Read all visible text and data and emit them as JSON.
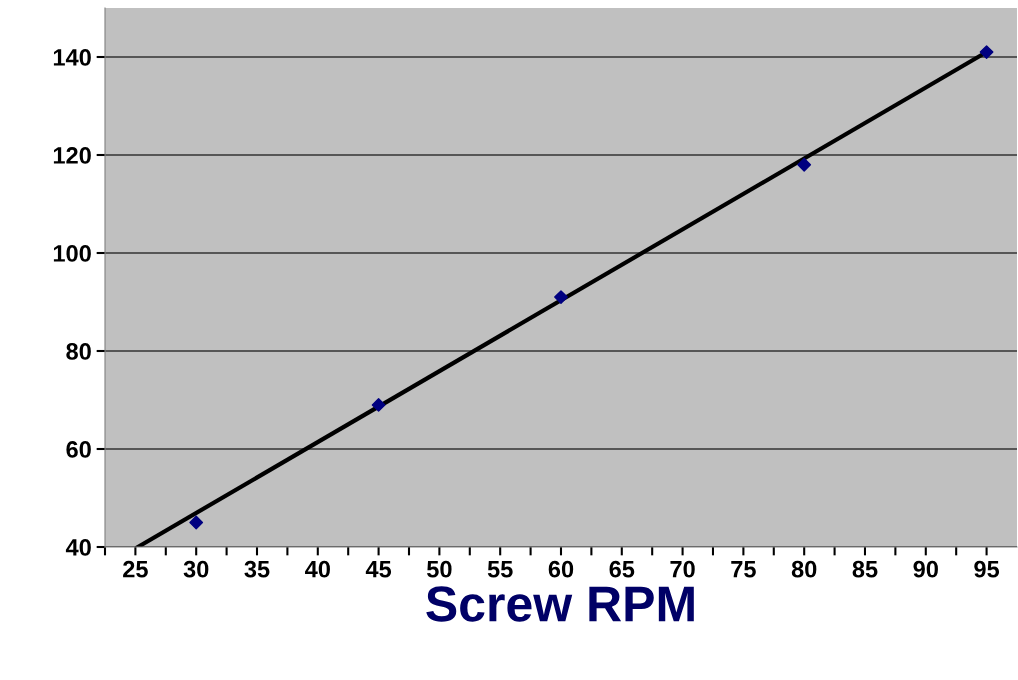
{
  "chart_data": {
    "type": "scatter",
    "xlabel": "Screw RPM",
    "x": [
      30,
      45,
      60,
      80,
      95
    ],
    "series": [
      {
        "color": "#000080",
        "marker": "diamond",
        "values": [
          45,
          69,
          91,
          118,
          141
        ]
      },
      {
        "type": "line",
        "color": "#000000",
        "marker": "none",
        "line_style": "solid",
        "x": [
          25.2,
          95
        ],
        "values": [
          40,
          141
        ]
      }
    ],
    "xlim": [
      22.5,
      97.5
    ],
    "xticks": [
      {
        "value": 22.5,
        "label": null
      },
      25,
      {
        "value": 27.5,
        "label": null
      },
      30,
      {
        "value": 32.5,
        "label": null
      },
      35,
      {
        "value": 37.5,
        "label": null
      },
      40,
      {
        "value": 42.5,
        "label": null
      },
      45,
      {
        "value": 47.5,
        "label": null
      },
      50,
      {
        "value": 52.5,
        "label": null
      },
      55,
      {
        "value": 57.5,
        "label": null
      },
      60,
      {
        "value": 62.5,
        "label": null
      },
      65,
      {
        "value": 67.5,
        "label": null
      },
      70,
      {
        "value": 72.5,
        "label": null
      },
      75,
      {
        "value": 77.5,
        "label": null
      },
      80,
      {
        "value": 82.5,
        "label": null
      },
      85,
      {
        "value": 87.5,
        "label": null
      },
      90,
      {
        "value": 92.5,
        "label": null
      },
      95
    ],
    "ylim": [
      40,
      150
    ],
    "yticks": [
      40,
      60,
      80,
      100,
      120,
      140
    ],
    "grid": "y",
    "legend": false
  }
}
